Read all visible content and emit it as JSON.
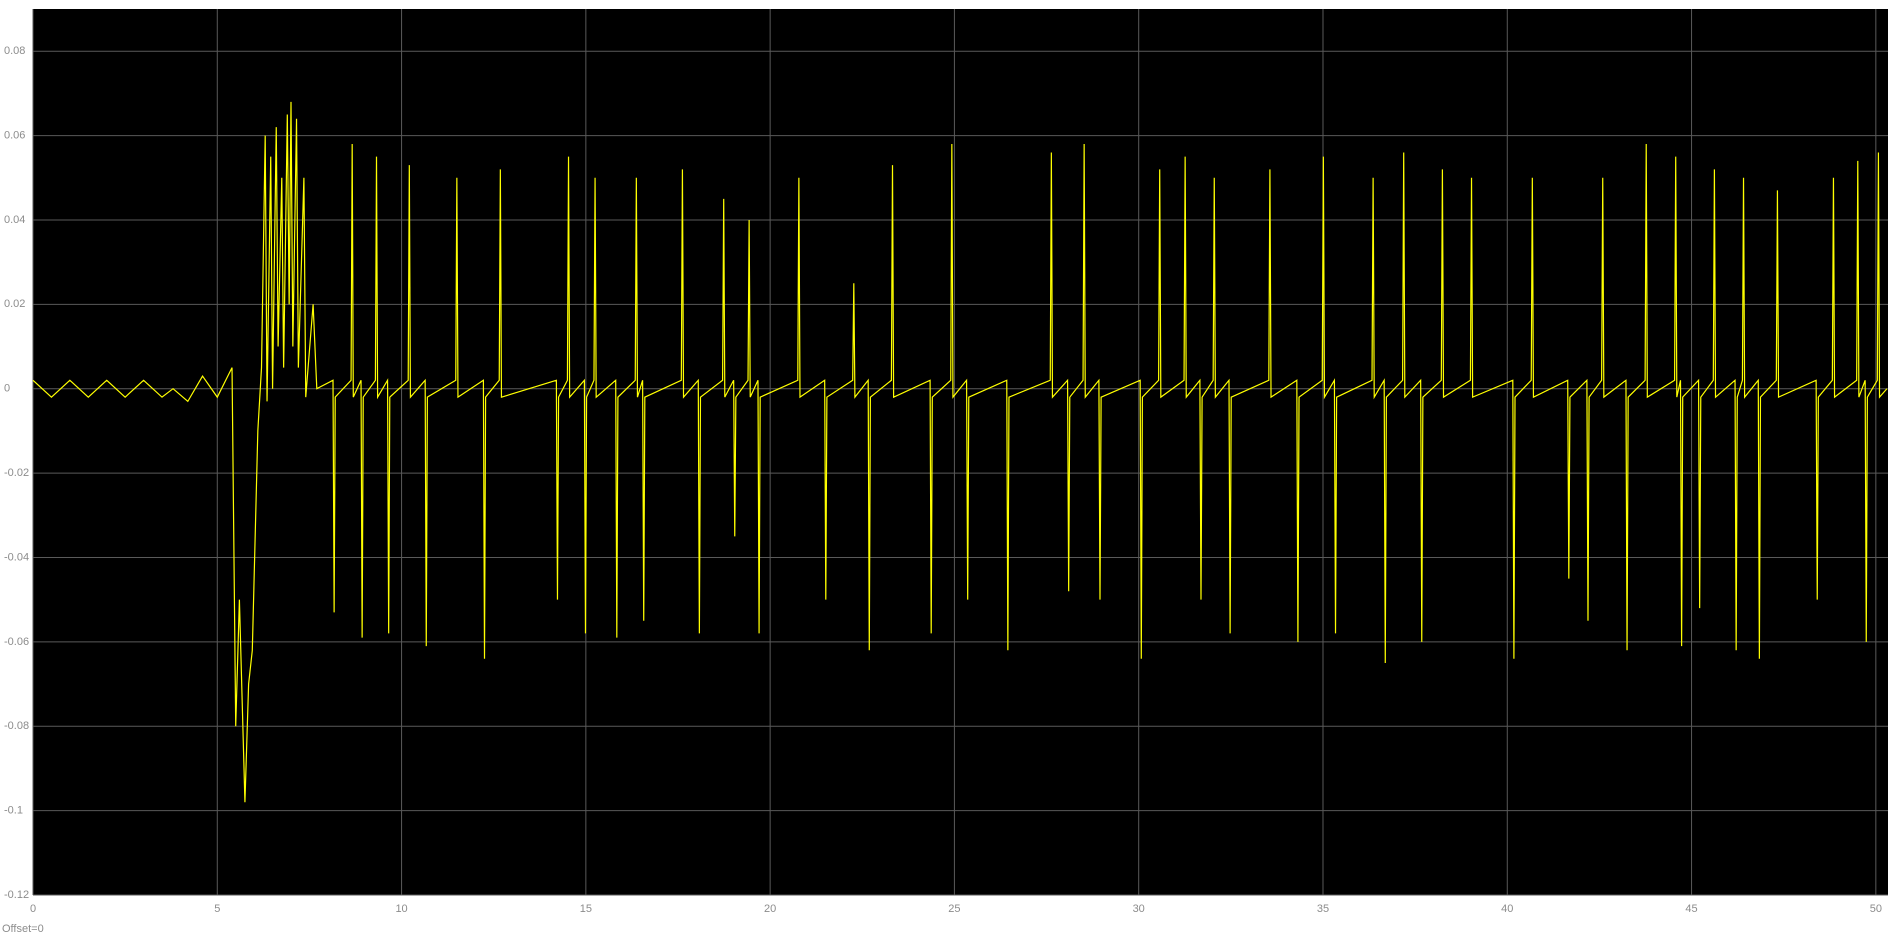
{
  "chart_data": {
    "type": "line",
    "annotation": "Offset=0",
    "xlim": [
      0,
      50.33
    ],
    "xticks": [
      0,
      5,
      10,
      15,
      20,
      25,
      30,
      35,
      40,
      45,
      50
    ],
    "ylim": [
      -0.12,
      0.09
    ],
    "yticks": [
      -0.12,
      -0.1,
      -0.08,
      -0.06,
      -0.04,
      -0.02,
      0,
      0.02,
      0.04,
      0.06,
      0.08
    ],
    "grid": true,
    "background": "#000000",
    "grid_color": "#5a5a5a",
    "series": [
      {
        "color": "#ffff00",
        "x": [
          0,
          0.5,
          1,
          1.5,
          2,
          2.5,
          3,
          3.5,
          3.8,
          4.2,
          4.6,
          5.0,
          5.4,
          5.5,
          5.6,
          5.75,
          5.85,
          5.95,
          6.1,
          6.2,
          6.3,
          6.35,
          6.45,
          6.5,
          6.6,
          6.65,
          6.75,
          6.8,
          6.9,
          6.95,
          7.0,
          7.05,
          7.15,
          7.2,
          7.35,
          7.4,
          7.6,
          7.7,
          8.14,
          8.17,
          8.2,
          8.63,
          8.66,
          8.69,
          8.9,
          8.93,
          8.96,
          9.29,
          9.32,
          9.35,
          9.62,
          9.65,
          9.68,
          10.18,
          10.21,
          10.24,
          10.64,
          10.67,
          10.7,
          11.47,
          11.5,
          11.53,
          12.22,
          12.25,
          12.28,
          12.65,
          12.68,
          12.71,
          14.2,
          14.23,
          14.26,
          14.5,
          14.53,
          14.56,
          14.96,
          14.99,
          15.02,
          15.22,
          15.25,
          15.28,
          15.81,
          15.84,
          15.87,
          16.34,
          16.37,
          16.4,
          16.54,
          16.57,
          16.6,
          17.59,
          17.62,
          17.65,
          18.05,
          18.08,
          18.11,
          18.71,
          18.74,
          18.77,
          19.01,
          19.04,
          19.07,
          19.4,
          19.43,
          19.46,
          19.67,
          19.7,
          19.73,
          20.75,
          20.78,
          20.81,
          21.48,
          21.51,
          21.54,
          22.24,
          22.27,
          22.3,
          22.66,
          22.69,
          22.72,
          23.29,
          23.32,
          23.35,
          24.34,
          24.37,
          24.4,
          24.9,
          24.93,
          24.96,
          25.33,
          25.36,
          25.39,
          26.42,
          26.45,
          26.48,
          27.6,
          27.63,
          27.66,
          28.07,
          28.1,
          28.13,
          28.49,
          28.52,
          28.55,
          28.92,
          28.95,
          28.98,
          30.04,
          30.07,
          30.1,
          30.54,
          30.57,
          30.6,
          31.23,
          31.26,
          31.29,
          31.66,
          31.69,
          31.72,
          32.02,
          32.05,
          32.08,
          32.45,
          32.48,
          32.51,
          33.53,
          33.56,
          33.59,
          34.29,
          34.32,
          34.35,
          34.98,
          35.01,
          35.04,
          35.31,
          35.34,
          35.37,
          36.33,
          36.36,
          36.39,
          36.66,
          36.69,
          36.72,
          37.16,
          37.19,
          37.22,
          37.65,
          37.68,
          37.71,
          38.21,
          38.24,
          38.27,
          39.0,
          39.03,
          39.06,
          40.15,
          40.18,
          40.21,
          40.65,
          40.68,
          40.71,
          41.64,
          41.67,
          41.7,
          42.16,
          42.19,
          42.22,
          42.56,
          42.59,
          42.62,
          43.22,
          43.25,
          43.28,
          43.74,
          43.77,
          43.8,
          44.54,
          44.57,
          44.6,
          44.7,
          44.73,
          44.76,
          45.19,
          45.22,
          45.25,
          45.59,
          45.62,
          45.65,
          46.18,
          46.21,
          46.24,
          46.38,
          46.41,
          46.44,
          46.81,
          46.84,
          46.87,
          47.3,
          47.33,
          47.36,
          48.38,
          48.41,
          48.44,
          48.82,
          48.85,
          48.88,
          49.48,
          49.51,
          49.54,
          49.71,
          49.74,
          49.77,
          50.04,
          50.07,
          50.1,
          50.3
        ],
        "values": [
          0.002,
          -0.002,
          0.002,
          -0.002,
          0.002,
          -0.002,
          0.002,
          -0.002,
          0,
          -0.003,
          0.003,
          -0.002,
          0.005,
          -0.08,
          -0.05,
          -0.098,
          -0.07,
          -0.062,
          -0.01,
          0.005,
          0.06,
          -0.003,
          0.055,
          0,
          0.062,
          0.01,
          0.05,
          0.005,
          0.065,
          0.02,
          0.068,
          0.01,
          0.064,
          0.005,
          0.05,
          -0.002,
          0.02,
          0,
          0.002,
          -0.053,
          -0.002,
          0.002,
          0.058,
          -0.002,
          0.002,
          -0.059,
          -0.002,
          0.002,
          0.055,
          -0.002,
          0.002,
          -0.058,
          -0.002,
          0.002,
          0.053,
          -0.002,
          0.002,
          -0.061,
          -0.002,
          0.002,
          0.05,
          -0.002,
          0.002,
          -0.064,
          -0.002,
          0.002,
          0.052,
          -0.002,
          0.002,
          -0.05,
          -0.002,
          0.002,
          0.055,
          -0.002,
          0.002,
          -0.058,
          -0.002,
          0.002,
          0.05,
          -0.002,
          0.002,
          -0.059,
          -0.002,
          0.002,
          0.05,
          -0.002,
          0.002,
          -0.055,
          -0.002,
          0.002,
          0.052,
          -0.002,
          0.002,
          -0.058,
          -0.002,
          0.002,
          0.045,
          -0.002,
          0.002,
          -0.035,
          -0.002,
          0.002,
          0.04,
          -0.002,
          0.002,
          -0.058,
          -0.002,
          0.002,
          0.05,
          -0.002,
          0.002,
          -0.05,
          -0.002,
          0.002,
          0.025,
          -0.002,
          0.002,
          -0.062,
          -0.002,
          0.002,
          0.053,
          -0.002,
          0.002,
          -0.058,
          -0.002,
          0.002,
          0.058,
          -0.002,
          0.002,
          -0.05,
          -0.002,
          0.002,
          -0.062,
          -0.002,
          0.002,
          0.056,
          -0.002,
          0.002,
          -0.048,
          -0.002,
          0.002,
          0.058,
          -0.002,
          0.002,
          -0.05,
          -0.002,
          0.002,
          -0.064,
          -0.002,
          0.002,
          0.052,
          -0.002,
          0.002,
          0.055,
          -0.002,
          0.002,
          -0.05,
          -0.002,
          0.002,
          0.05,
          -0.002,
          0.002,
          -0.058,
          -0.002,
          0.002,
          0.052,
          -0.002,
          0.002,
          -0.06,
          -0.002,
          0.002,
          0.055,
          -0.002,
          0.002,
          -0.058,
          -0.002,
          0.002,
          0.05,
          -0.002,
          0.002,
          -0.065,
          -0.002,
          0.002,
          0.056,
          -0.002,
          0.002,
          -0.06,
          -0.002,
          0.002,
          0.052,
          -0.002,
          0.002,
          0.05,
          -0.002,
          0.002,
          -0.064,
          -0.002,
          0.002,
          0.05,
          -0.002,
          0.002,
          -0.045,
          -0.002,
          0.002,
          -0.055,
          -0.002,
          0.002,
          0.05,
          -0.002,
          0.002,
          -0.062,
          -0.002,
          0.002,
          0.058,
          -0.002,
          0.002,
          0.055,
          -0.002,
          0.002,
          -0.061,
          -0.002,
          0.002,
          -0.052,
          -0.002,
          0.002,
          0.052,
          -0.002,
          0.002,
          -0.062,
          -0.002,
          0.002,
          0.05,
          -0.002,
          0.002,
          -0.064,
          -0.002,
          0.002,
          0.047,
          -0.002,
          0.002,
          -0.05,
          -0.002,
          0.002,
          0.05,
          -0.002,
          0.002,
          0.054,
          -0.002,
          0.002,
          -0.06,
          -0.002,
          0.002,
          0.056,
          -0.002,
          0
        ]
      }
    ]
  }
}
